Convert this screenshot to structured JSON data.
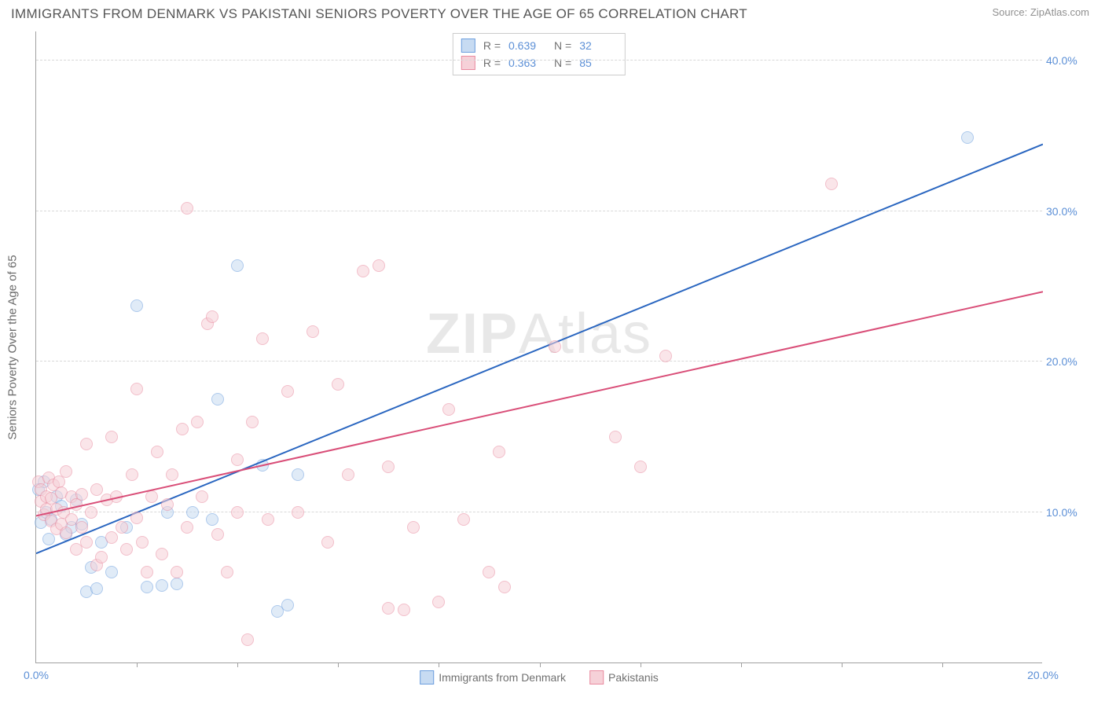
{
  "title": "IMMIGRANTS FROM DENMARK VS PAKISTANI SENIORS POVERTY OVER THE AGE OF 65 CORRELATION CHART",
  "source": "Source: ZipAtlas.com",
  "watermark_part1": "ZIP",
  "watermark_part2": "Atlas",
  "y_axis_label": "Seniors Poverty Over the Age of 65",
  "chart": {
    "type": "scatter",
    "background_color": "#ffffff",
    "grid_color": "#d8d8d8",
    "axis_color": "#a0a0a0",
    "tick_label_color": "#5b8fd6",
    "label_color": "#6a6a6a",
    "xlim": [
      0,
      20
    ],
    "ylim": [
      0,
      42
    ],
    "x_ticks": [
      0,
      20
    ],
    "x_tick_labels": [
      "0.0%",
      "20.0%"
    ],
    "y_gridlines": [
      10,
      20,
      30,
      40
    ],
    "y_tick_labels": [
      "10.0%",
      "20.0%",
      "30.0%",
      "40.0%"
    ],
    "minor_x_ticks_count": 9,
    "dot_radius": 8,
    "dot_opacity": 0.55,
    "line_width": 2
  },
  "series": [
    {
      "name": "Immigrants from Denmark",
      "color_fill": "#c7dbf2",
      "color_stroke": "#6d9fde",
      "line_color": "#2a66c0",
      "R": "0.639",
      "N": "32",
      "trend": {
        "x1": 0,
        "y1": 7.3,
        "x2": 20,
        "y2": 34.5
      },
      "points": [
        [
          0.05,
          11.5
        ],
        [
          0.1,
          9.3
        ],
        [
          0.15,
          12.0
        ],
        [
          0.2,
          10.0
        ],
        [
          0.25,
          8.2
        ],
        [
          0.3,
          9.5
        ],
        [
          0.4,
          11.0
        ],
        [
          0.5,
          10.4
        ],
        [
          0.6,
          8.5
        ],
        [
          0.7,
          9.0
        ],
        [
          0.8,
          10.8
        ],
        [
          0.9,
          9.2
        ],
        [
          1.0,
          4.7
        ],
        [
          1.1,
          6.3
        ],
        [
          1.2,
          4.9
        ],
        [
          1.3,
          8.0
        ],
        [
          1.5,
          6.0
        ],
        [
          1.8,
          9.0
        ],
        [
          2.0,
          23.7
        ],
        [
          2.2,
          5.0
        ],
        [
          2.5,
          5.1
        ],
        [
          2.6,
          10.0
        ],
        [
          2.8,
          5.2
        ],
        [
          3.1,
          10.0
        ],
        [
          3.5,
          9.5
        ],
        [
          3.6,
          17.5
        ],
        [
          4.0,
          26.4
        ],
        [
          4.5,
          13.1
        ],
        [
          4.8,
          3.4
        ],
        [
          5.2,
          12.5
        ],
        [
          5.0,
          3.8
        ],
        [
          18.5,
          34.9
        ]
      ]
    },
    {
      "name": "Pakistanis",
      "color_fill": "#f6d1d8",
      "color_stroke": "#e98ba0",
      "line_color": "#d94e78",
      "R": "0.363",
      "N": "85",
      "trend": {
        "x1": 0,
        "y1": 9.8,
        "x2": 20,
        "y2": 24.7
      },
      "points": [
        [
          0.05,
          12.0
        ],
        [
          0.1,
          10.7
        ],
        [
          0.1,
          11.5
        ],
        [
          0.15,
          9.8
        ],
        [
          0.2,
          10.2
        ],
        [
          0.2,
          11.0
        ],
        [
          0.25,
          12.3
        ],
        [
          0.3,
          9.4
        ],
        [
          0.3,
          10.9
        ],
        [
          0.35,
          11.8
        ],
        [
          0.4,
          8.9
        ],
        [
          0.4,
          10.2
        ],
        [
          0.45,
          12.0
        ],
        [
          0.5,
          9.2
        ],
        [
          0.5,
          11.3
        ],
        [
          0.55,
          10.0
        ],
        [
          0.6,
          8.6
        ],
        [
          0.6,
          12.7
        ],
        [
          0.7,
          9.5
        ],
        [
          0.7,
          11.0
        ],
        [
          0.8,
          10.5
        ],
        [
          0.8,
          7.5
        ],
        [
          0.9,
          9.0
        ],
        [
          0.9,
          11.2
        ],
        [
          1.0,
          14.5
        ],
        [
          1.0,
          8.0
        ],
        [
          1.1,
          10.0
        ],
        [
          1.2,
          6.5
        ],
        [
          1.2,
          11.5
        ],
        [
          1.3,
          7.0
        ],
        [
          1.4,
          10.8
        ],
        [
          1.5,
          8.3
        ],
        [
          1.5,
          15.0
        ],
        [
          1.6,
          11.0
        ],
        [
          1.7,
          9.0
        ],
        [
          1.8,
          7.5
        ],
        [
          1.9,
          12.5
        ],
        [
          2.0,
          18.2
        ],
        [
          2.0,
          9.6
        ],
        [
          2.1,
          8.0
        ],
        [
          2.2,
          6.0
        ],
        [
          2.3,
          11.0
        ],
        [
          2.4,
          14.0
        ],
        [
          2.5,
          7.2
        ],
        [
          2.6,
          10.5
        ],
        [
          2.7,
          12.5
        ],
        [
          2.8,
          6.0
        ],
        [
          2.9,
          15.5
        ],
        [
          3.0,
          30.2
        ],
        [
          3.0,
          9.0
        ],
        [
          3.2,
          16.0
        ],
        [
          3.3,
          11.0
        ],
        [
          3.4,
          22.5
        ],
        [
          3.5,
          23.0
        ],
        [
          3.6,
          8.5
        ],
        [
          3.8,
          6.0
        ],
        [
          4.0,
          10.0
        ],
        [
          4.0,
          13.5
        ],
        [
          4.2,
          1.5
        ],
        [
          4.3,
          16.0
        ],
        [
          4.5,
          21.5
        ],
        [
          4.6,
          9.5
        ],
        [
          5.0,
          18.0
        ],
        [
          5.2,
          10.0
        ],
        [
          5.5,
          22.0
        ],
        [
          5.8,
          8.0
        ],
        [
          6.0,
          18.5
        ],
        [
          6.2,
          12.5
        ],
        [
          6.5,
          26.0
        ],
        [
          6.8,
          26.4
        ],
        [
          7.0,
          13.0
        ],
        [
          7.3,
          3.5
        ],
        [
          7.5,
          9.0
        ],
        [
          8.0,
          4.0
        ],
        [
          8.2,
          16.8
        ],
        [
          8.5,
          9.5
        ],
        [
          9.0,
          6.0
        ],
        [
          9.2,
          14.0
        ],
        [
          9.3,
          5.0
        ],
        [
          10.3,
          21.0
        ],
        [
          11.5,
          15.0
        ],
        [
          12.5,
          20.4
        ],
        [
          12.0,
          13.0
        ],
        [
          15.8,
          31.8
        ],
        [
          7.0,
          3.6
        ]
      ]
    }
  ],
  "stats_legend_labels": {
    "R": "R =",
    "N": "N ="
  }
}
